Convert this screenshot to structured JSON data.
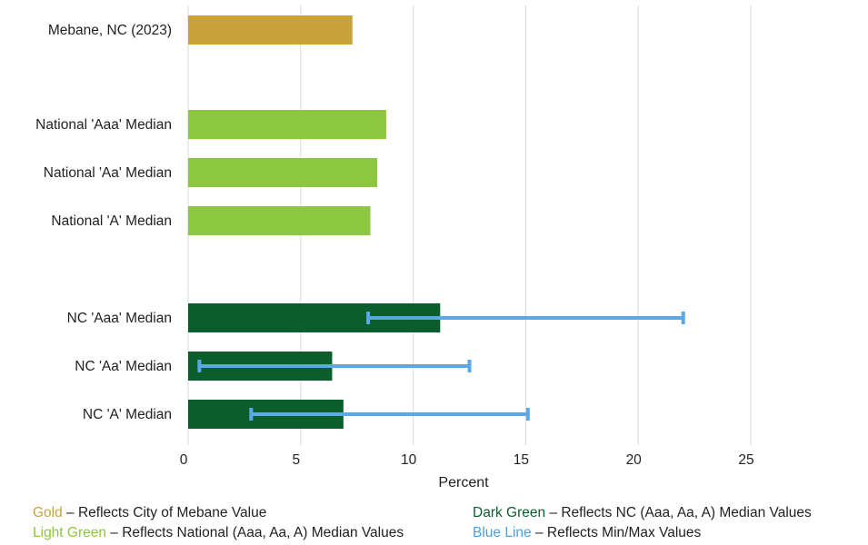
{
  "chart_data": {
    "type": "bar",
    "orientation": "horizontal",
    "xlabel": "Percent",
    "xlim": [
      0,
      25
    ],
    "xticks": [
      "0",
      "5",
      "10",
      "15",
      "20",
      "25"
    ],
    "grid": true,
    "colors": {
      "gold": "#c9a23a",
      "light_green": "#8dc63f",
      "dark_green": "#0b5e2c",
      "blue": "#5aa9e6"
    },
    "bars": [
      {
        "label": "Mebane, NC (2023)",
        "value": 7.3,
        "color": "gold"
      },
      {
        "label": "National 'Aaa' Median",
        "value": 8.8,
        "color": "light_green"
      },
      {
        "label": "National 'Aa' Median",
        "value": 8.4,
        "color": "light_green"
      },
      {
        "label": "National 'A' Median",
        "value": 8.1,
        "color": "light_green"
      },
      {
        "label": "NC 'Aaa' Median",
        "value": 11.2,
        "color": "dark_green",
        "min": 8.0,
        "max": 22.0
      },
      {
        "label": "NC 'Aa' Median",
        "value": 6.4,
        "color": "dark_green",
        "min": 0.5,
        "max": 12.5
      },
      {
        "label": "NC 'A' Median",
        "value": 6.9,
        "color": "dark_green",
        "min": 2.8,
        "max": 15.1
      }
    ]
  },
  "legend": [
    {
      "key": "Gold",
      "text": " – Reflects City of Mebane Value",
      "color": "#c9a23a"
    },
    {
      "key": "Light Green",
      "text": " – Reflects National (Aaa, Aa, A) Median Values",
      "color": "#8dc63f"
    },
    {
      "key": "Dark Green",
      "text": " – Reflects NC (Aaa, Aa, A) Median Values",
      "color": "#0b5e2c"
    },
    {
      "key": "Blue Line",
      "text": " – Reflects Min/Max Values",
      "color": "#4a9fe3"
    }
  ]
}
